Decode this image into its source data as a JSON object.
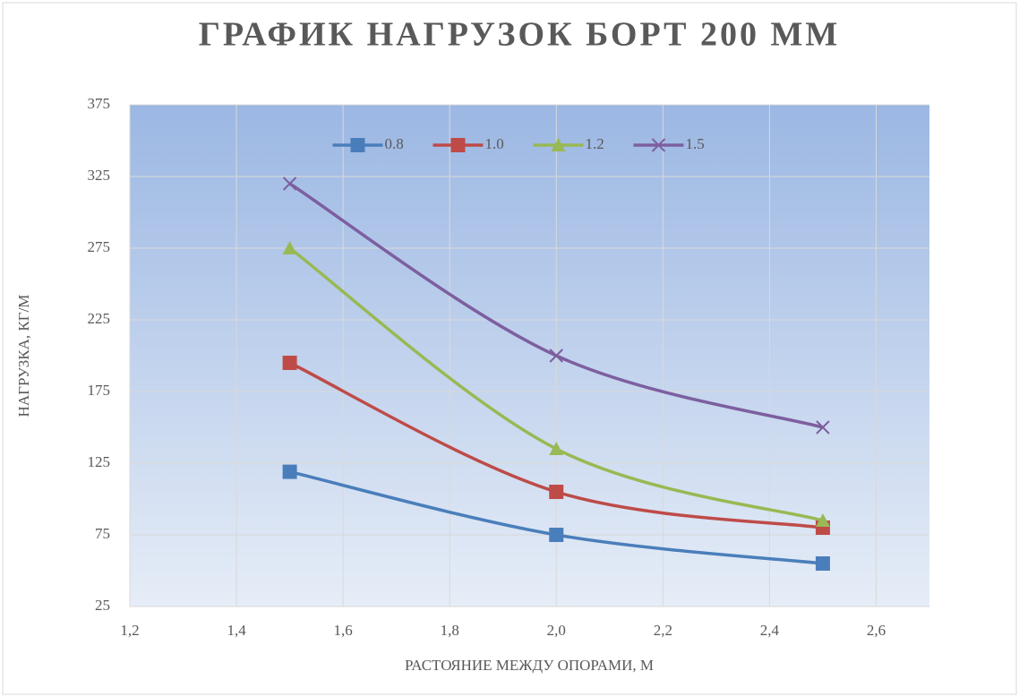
{
  "chart_data": {
    "type": "line",
    "title": "ГРАФИК НАГРУЗОК БОРТ 200 ММ",
    "x_label": "РАСТОЯНИЕ МЕЖДУ ОПОРАМИ, М",
    "y_label": "НАГРУЗКА, КГ/М",
    "x": [
      1.5,
      2.0,
      2.5
    ],
    "series": [
      {
        "name": "0.8",
        "color": "#4a7ebb",
        "marker": "square",
        "values": [
          119,
          75,
          55
        ]
      },
      {
        "name": "1.0",
        "color": "#be4b48",
        "marker": "square",
        "values": [
          195,
          105,
          80
        ]
      },
      {
        "name": "1.2",
        "color": "#98b954",
        "marker": "triangle",
        "values": [
          275,
          135,
          85
        ]
      },
      {
        "name": "1.5",
        "color": "#7d5fa0",
        "marker": "x",
        "values": [
          320,
          200,
          150
        ]
      }
    ],
    "xlim": [
      1.2,
      2.7
    ],
    "xticks": [
      {
        "value": 1.2,
        "label": "1,2"
      },
      {
        "value": 1.4,
        "label": "1,4"
      },
      {
        "value": 1.6,
        "label": "1,6"
      },
      {
        "value": 1.8,
        "label": "1,8"
      },
      {
        "value": 2.0,
        "label": "2,0"
      },
      {
        "value": 2.2,
        "label": "2,2"
      },
      {
        "value": 2.4,
        "label": "2,4"
      },
      {
        "value": 2.6,
        "label": "2,6"
      }
    ],
    "ylim": [
      25,
      375
    ],
    "yticks": [
      25,
      75,
      125,
      175,
      225,
      275,
      325,
      375
    ],
    "grid": true,
    "smooth": true,
    "legend": "top"
  }
}
